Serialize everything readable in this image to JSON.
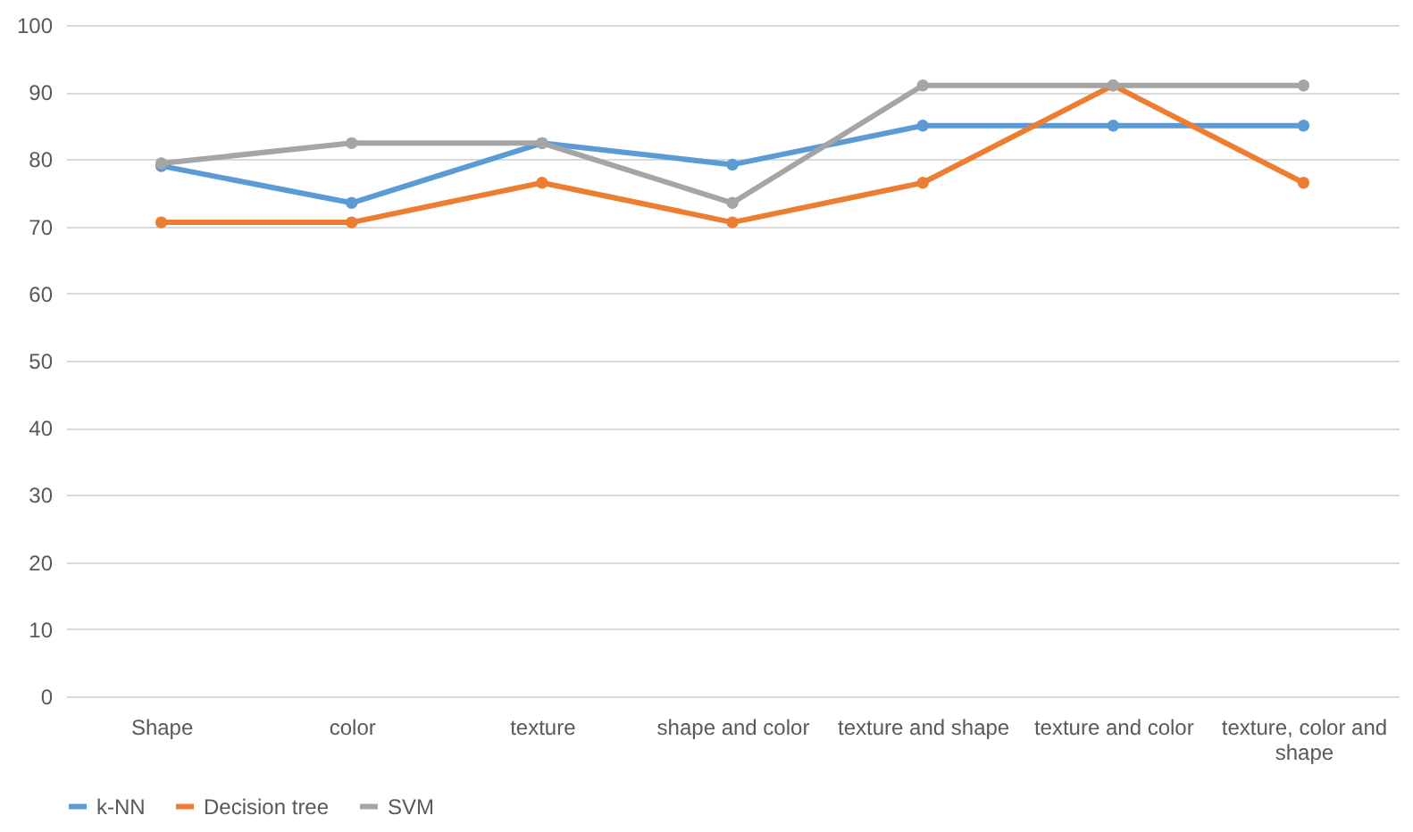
{
  "chart_data": {
    "type": "line",
    "categories": [
      "Shape",
      "color",
      "texture",
      "shape and color",
      "texture and shape",
      "texture and color",
      "texture, color and shape"
    ],
    "series": [
      {
        "name": "k-NN",
        "color": "#5b9bd5",
        "values": [
          79.0,
          73.5,
          82.4,
          79.2,
          85.0,
          85.0,
          85.0
        ]
      },
      {
        "name": "Decision tree",
        "color": "#ed7d31",
        "values": [
          70.6,
          70.6,
          76.5,
          70.6,
          76.5,
          91.0,
          76.5
        ]
      },
      {
        "name": "SVM",
        "color": "#a5a5a5",
        "values": [
          79.4,
          82.4,
          82.4,
          73.5,
          91.0,
          91.0,
          91.0
        ]
      }
    ],
    "ylim": [
      0,
      100
    ],
    "yticks": [
      0,
      10,
      20,
      30,
      40,
      50,
      60,
      70,
      80,
      90,
      100
    ],
    "grid": "y",
    "legend": "bottom",
    "marker": "circle",
    "line_style": "solid"
  }
}
